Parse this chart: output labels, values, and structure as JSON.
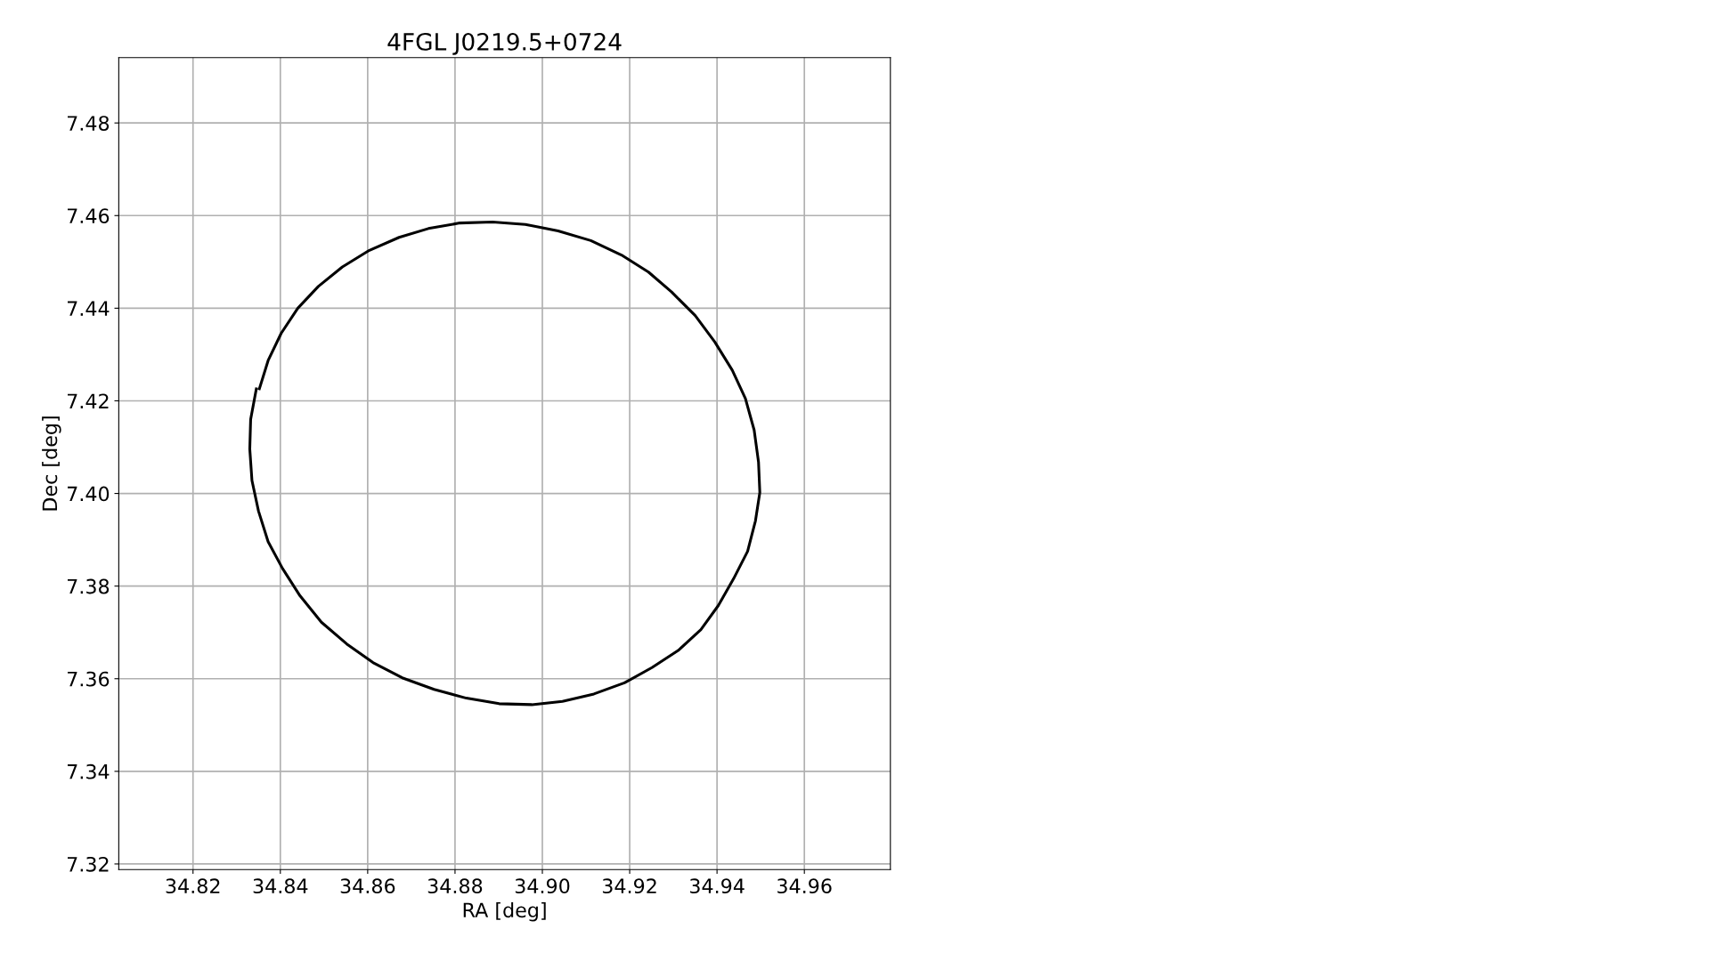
{
  "chart_data": {
    "type": "line",
    "title": "4FGL J0219.5+0724",
    "xlabel": "RA [deg]",
    "ylabel": "Dec [deg]",
    "xlim": [
      34.803,
      34.9797
    ],
    "ylim": [
      7.3188,
      7.4941
    ],
    "xticks": [
      34.82,
      34.84,
      34.86,
      34.88,
      {
        "value": 34.9,
        "label": "34.90"
      },
      34.92,
      34.94,
      34.96
    ],
    "yticks": [
      7.32,
      7.34,
      7.36,
      7.38,
      {
        "value": 7.4,
        "label": "7.40"
      },
      7.42,
      7.44,
      7.46,
      7.48
    ],
    "grid": true,
    "marker": "none",
    "line_style": "solid",
    "series": [
      {
        "color": "#000000",
        "x": [
          34.8345,
          34.8332,
          34.833,
          34.8335,
          34.835,
          34.8372,
          34.8405,
          34.8445,
          34.8494,
          34.8552,
          34.8612,
          34.8679,
          34.8752,
          34.8826,
          34.8901,
          34.8976,
          34.9046,
          34.9118,
          34.9188,
          34.9251,
          34.9311,
          34.9363,
          34.9403,
          34.9438,
          34.947,
          34.9488,
          34.9498,
          34.9495,
          34.9485,
          34.9465,
          34.9435,
          34.9395,
          34.935,
          34.9296,
          34.9243,
          34.9181,
          34.9111,
          34.9036,
          34.8961,
          34.8886,
          34.8811,
          34.8739,
          34.8672,
          34.8604,
          34.8542,
          34.8487,
          34.844,
          34.8402,
          34.8372,
          34.8352
        ],
        "values": [
          7.4226,
          7.416,
          7.4096,
          7.4028,
          7.3962,
          7.3896,
          7.3838,
          7.3779,
          7.3722,
          7.3675,
          7.3635,
          7.3602,
          7.3577,
          7.3558,
          7.3546,
          7.3544,
          7.3551,
          7.3567,
          7.3591,
          7.3624,
          7.3661,
          7.3706,
          7.3758,
          7.3816,
          7.3875,
          7.3941,
          7.4002,
          7.4068,
          7.4137,
          7.4205,
          7.4266,
          7.4327,
          7.4384,
          7.4435,
          7.4478,
          7.4515,
          7.4546,
          7.4567,
          7.4581,
          7.4586,
          7.4584,
          7.4572,
          7.4553,
          7.4525,
          7.4489,
          7.4447,
          7.44,
          7.4346,
          7.4287,
          7.4226
        ]
      }
    ]
  }
}
